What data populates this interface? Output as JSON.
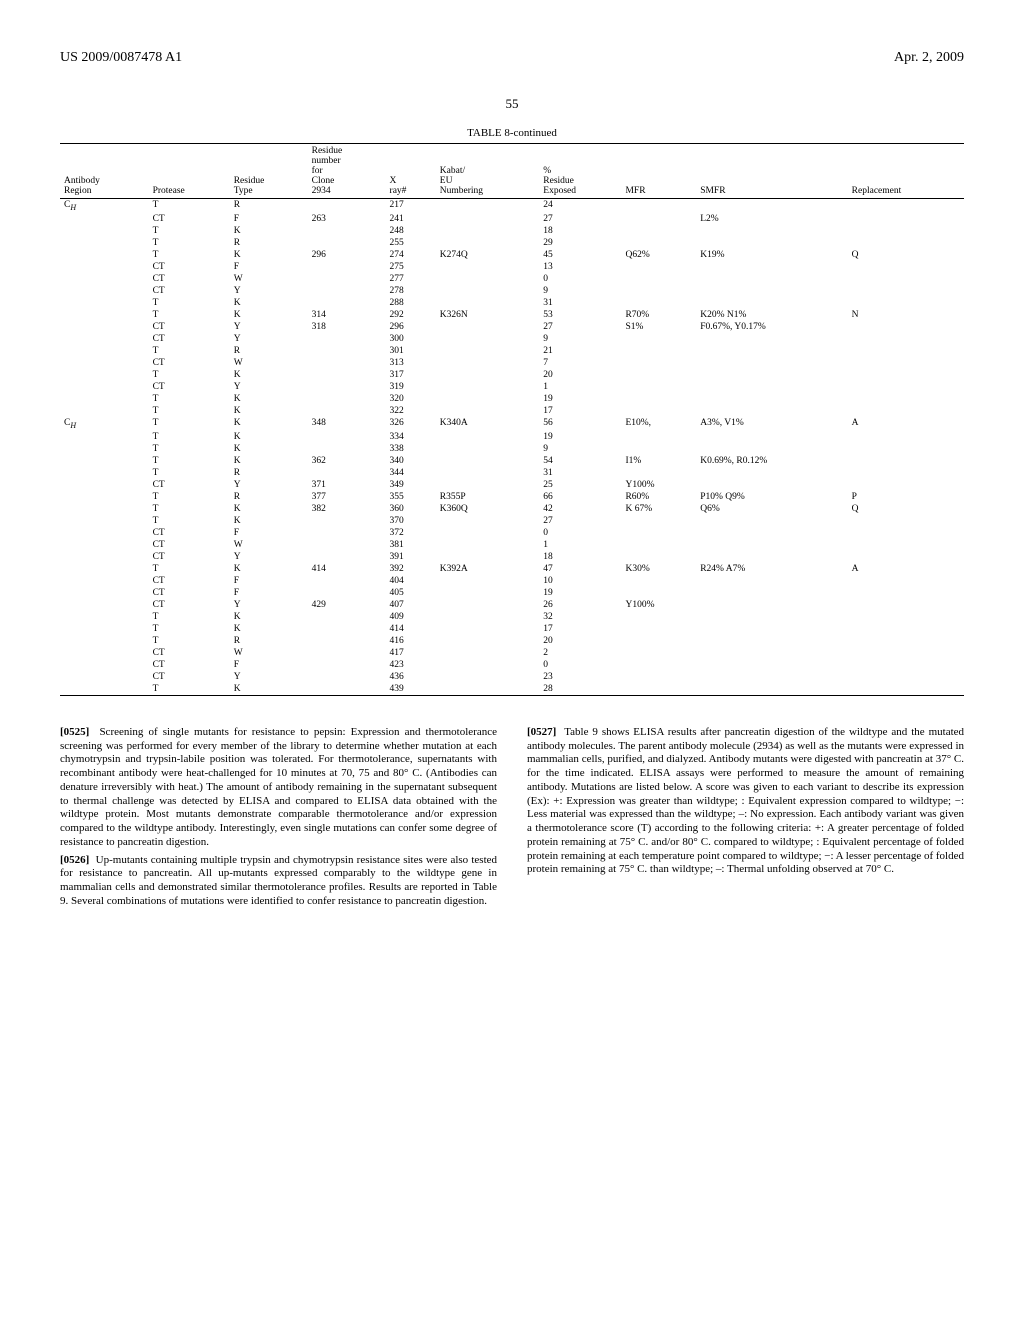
{
  "header": {
    "left": "US 2009/0087478 A1",
    "right": "Apr. 2, 2009"
  },
  "page_number": "55",
  "table": {
    "title": "TABLE 8-continued",
    "columns": [
      "Antibody Region",
      "Protease",
      "Residue Type",
      "Residue number for Clone 2934",
      "X ray#",
      "Kabat/ EU Numbering",
      "% Residue Exposed",
      "MFR",
      "SMFR",
      "Replacement"
    ],
    "rows": [
      [
        "C_H",
        "T",
        "R",
        "",
        "217",
        "",
        "24",
        "",
        "",
        ""
      ],
      [
        "",
        "CT",
        "F",
        "263",
        "241",
        "",
        "27",
        "",
        "L2%",
        ""
      ],
      [
        "",
        "T",
        "K",
        "",
        "248",
        "",
        "18",
        "",
        "",
        ""
      ],
      [
        "",
        "T",
        "R",
        "",
        "255",
        "",
        "29",
        "",
        "",
        ""
      ],
      [
        "",
        "T",
        "K",
        "296",
        "274",
        "K274Q",
        "45",
        "Q62%",
        "K19%",
        "Q"
      ],
      [
        "",
        "CT",
        "F",
        "",
        "275",
        "",
        "13",
        "",
        "",
        ""
      ],
      [
        "",
        "CT",
        "W",
        "",
        "277",
        "",
        "0",
        "",
        "",
        ""
      ],
      [
        "",
        "CT",
        "Y",
        "",
        "278",
        "",
        "9",
        "",
        "",
        ""
      ],
      [
        "",
        "T",
        "K",
        "",
        "288",
        "",
        "31",
        "",
        "",
        ""
      ],
      [
        "",
        "T",
        "K",
        "314",
        "292",
        "K326N",
        "53",
        "R70%",
        "K20% N1%",
        "N"
      ],
      [
        "",
        "CT",
        "Y",
        "318",
        "296",
        "",
        "27",
        "S1%",
        "F0.67%, Y0.17%",
        ""
      ],
      [
        "",
        "CT",
        "Y",
        "",
        "300",
        "",
        "9",
        "",
        "",
        ""
      ],
      [
        "",
        "T",
        "R",
        "",
        "301",
        "",
        "21",
        "",
        "",
        ""
      ],
      [
        "",
        "CT",
        "W",
        "",
        "313",
        "",
        "7",
        "",
        "",
        ""
      ],
      [
        "",
        "T",
        "K",
        "",
        "317",
        "",
        "20",
        "",
        "",
        ""
      ],
      [
        "",
        "CT",
        "Y",
        "",
        "319",
        "",
        "1",
        "",
        "",
        ""
      ],
      [
        "",
        "T",
        "K",
        "",
        "320",
        "",
        "19",
        "",
        "",
        ""
      ],
      [
        "",
        "T",
        "K",
        "",
        "322",
        "",
        "17",
        "",
        "",
        ""
      ],
      [
        "C_H",
        "T",
        "K",
        "348",
        "326",
        "K340A",
        "56",
        "E10%,",
        "A3%, V1%",
        "A"
      ],
      [
        "",
        "T",
        "K",
        "",
        "334",
        "",
        "19",
        "",
        "",
        ""
      ],
      [
        "",
        "T",
        "K",
        "",
        "338",
        "",
        "9",
        "",
        "",
        ""
      ],
      [
        "",
        "T",
        "K",
        "362",
        "340",
        "",
        "54",
        "I1%",
        "K0.69%, R0.12%",
        ""
      ],
      [
        "",
        "T",
        "R",
        "",
        "344",
        "",
        "31",
        "",
        "",
        ""
      ],
      [
        "",
        "CT",
        "Y",
        "371",
        "349",
        "",
        "25",
        "Y100%",
        "",
        ""
      ],
      [
        "",
        "T",
        "R",
        "377",
        "355",
        "R355P",
        "66",
        "R60%",
        "P10% Q9%",
        "P"
      ],
      [
        "",
        "T",
        "K",
        "382",
        "360",
        "K360Q",
        "42",
        "K 67%",
        "Q6%",
        "Q"
      ],
      [
        "",
        "T",
        "K",
        "",
        "370",
        "",
        "27",
        "",
        "",
        ""
      ],
      [
        "",
        "CT",
        "F",
        "",
        "372",
        "",
        "0",
        "",
        "",
        ""
      ],
      [
        "",
        "CT",
        "W",
        "",
        "381",
        "",
        "1",
        "",
        "",
        ""
      ],
      [
        "",
        "CT",
        "Y",
        "",
        "391",
        "",
        "18",
        "",
        "",
        ""
      ],
      [
        "",
        "T",
        "K",
        "414",
        "392",
        "K392A",
        "47",
        "K30%",
        "R24% A7%",
        "A"
      ],
      [
        "",
        "CT",
        "F",
        "",
        "404",
        "",
        "10",
        "",
        "",
        ""
      ],
      [
        "",
        "CT",
        "F",
        "",
        "405",
        "",
        "19",
        "",
        "",
        ""
      ],
      [
        "",
        "CT",
        "Y",
        "429",
        "407",
        "",
        "26",
        "Y100%",
        "",
        ""
      ],
      [
        "",
        "T",
        "K",
        "",
        "409",
        "",
        "32",
        "",
        "",
        ""
      ],
      [
        "",
        "T",
        "K",
        "",
        "414",
        "",
        "17",
        "",
        "",
        ""
      ],
      [
        "",
        "T",
        "R",
        "",
        "416",
        "",
        "20",
        "",
        "",
        ""
      ],
      [
        "",
        "CT",
        "W",
        "",
        "417",
        "",
        "2",
        "",
        "",
        ""
      ],
      [
        "",
        "CT",
        "F",
        "",
        "423",
        "",
        "0",
        "",
        "",
        ""
      ],
      [
        "",
        "CT",
        "Y",
        "",
        "436",
        "",
        "23",
        "",
        "",
        ""
      ],
      [
        "",
        "T",
        "K",
        "",
        "439",
        "",
        "28",
        "",
        "",
        ""
      ]
    ]
  },
  "paragraphs": [
    {
      "num": "[0525]",
      "text": "Screening of single mutants for resistance to pepsin: Expression and thermotolerance screening was performed for every member of the library to determine whether mutation at each chymotrypsin and trypsin-labile position was tolerated. For thermotolerance, supernatants with recombinant antibody were heat-challenged for 10 minutes at 70, 75 and 80° C. (Antibodies can denature irreversibly with heat.) The amount of antibody remaining in the supernatant subsequent to thermal challenge was detected by ELISA and compared to ELISA data obtained with the wildtype protein. Most mutants demonstrate comparable thermotolerance and/or expression compared to the wildtype antibody. Interestingly, even single mutations can confer some degree of resistance to pancreatin digestion."
    },
    {
      "num": "[0526]",
      "text": "Up-mutants containing multiple trypsin and chymotrypsin resistance sites were also tested for resistance to pancreatin. All up-mutants expressed comparably to the wildtype gene in mammalian cells and demonstrated similar thermotolerance profiles. Results are reported in Table 9. Several combinations of mutations were identified to confer resistance to pancreatin digestion."
    },
    {
      "num": "[0527]",
      "text": "Table 9 shows ELISA results after pancreatin digestion of the wildtype and the mutated antibody molecules. The parent antibody molecule (2934) as well as the mutants were expressed in mammalian cells, purified, and dialyzed. Antibody mutants were digested with pancreatin at 37° C. for the time indicated. ELISA assays were performed to measure the amount of remaining antibody. Mutations are listed below. A score was given to each variant to describe its expression (Ex): +: Expression was greater than wildtype; : Equivalent expression compared to wildtype; −: Less material was expressed than the wildtype; –: No expression. Each antibody variant was given a thermotolerance score (T) according to the following criteria: +: A greater percentage of folded protein remaining at 75° C. and/or 80° C. compared to wildtype; : Equivalent percentage of folded protein remaining at each temperature point compared to wildtype; −: A lesser percentage of folded protein remaining at 75° C. than wildtype; –: Thermal unfolding observed at 70° C."
    }
  ]
}
